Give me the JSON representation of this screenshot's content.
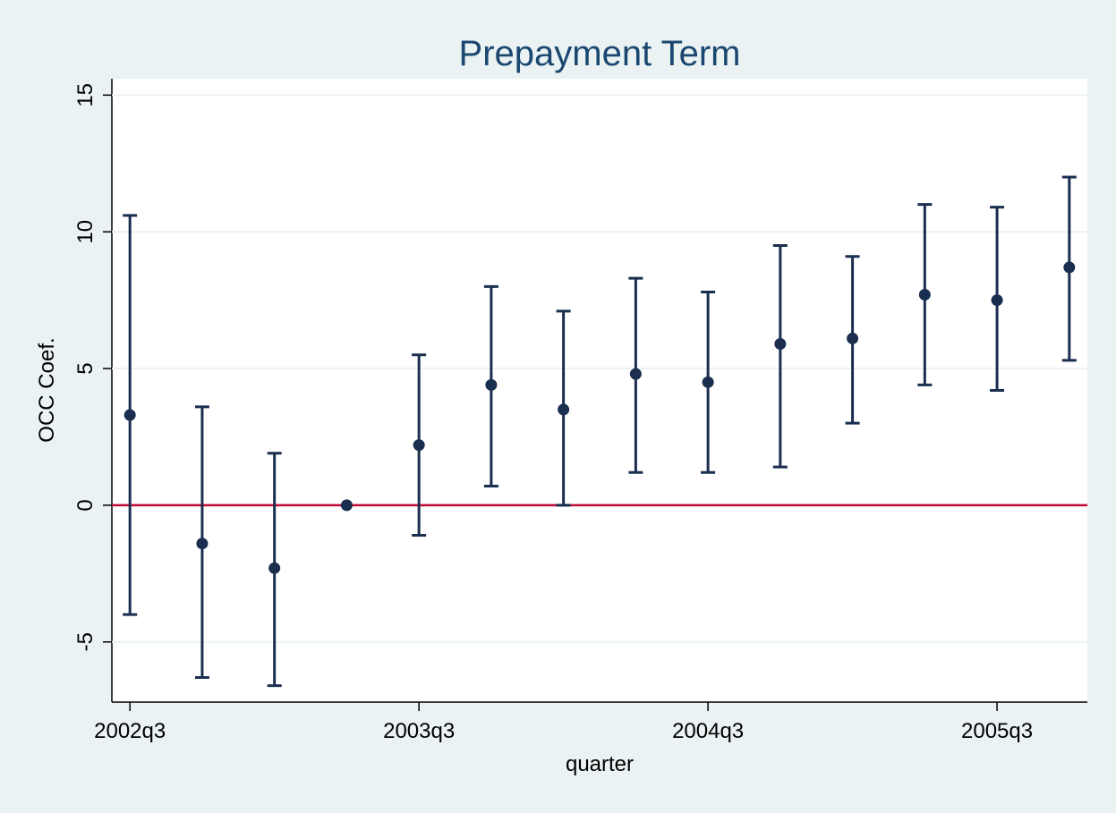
{
  "chart_data": {
    "type": "errorbar",
    "title": "Prepayment Term",
    "x_label": "quarter",
    "y_label": "OCC Coef.",
    "categories": [
      "2002q3",
      null,
      null,
      null,
      "2003q3",
      null,
      null,
      null,
      "2004q3",
      null,
      null,
      null,
      "2005q3",
      null
    ],
    "series": [
      {
        "color": "#1a2e4f",
        "values": [
          3.3,
          -1.4,
          -2.3,
          0,
          2.2,
          4.4,
          3.5,
          4.8,
          4.5,
          5.9,
          6.1,
          7.7,
          7.5,
          8.7
        ],
        "lower": [
          -4.0,
          -6.3,
          -6.6,
          null,
          -1.1,
          0.7,
          0.0,
          1.2,
          1.2,
          1.4,
          3.0,
          4.4,
          4.2,
          5.3
        ],
        "upper": [
          10.6,
          3.6,
          1.9,
          null,
          5.5,
          8.0,
          7.1,
          8.3,
          7.8,
          9.5,
          9.1,
          11.0,
          10.9,
          12.0
        ]
      }
    ],
    "reference_line": {
      "value": 0,
      "color": "#c10534"
    },
    "ylim": [
      -7.2,
      15.6
    ],
    "yticks": [
      -5,
      0,
      5,
      10,
      15
    ],
    "grid": true
  }
}
